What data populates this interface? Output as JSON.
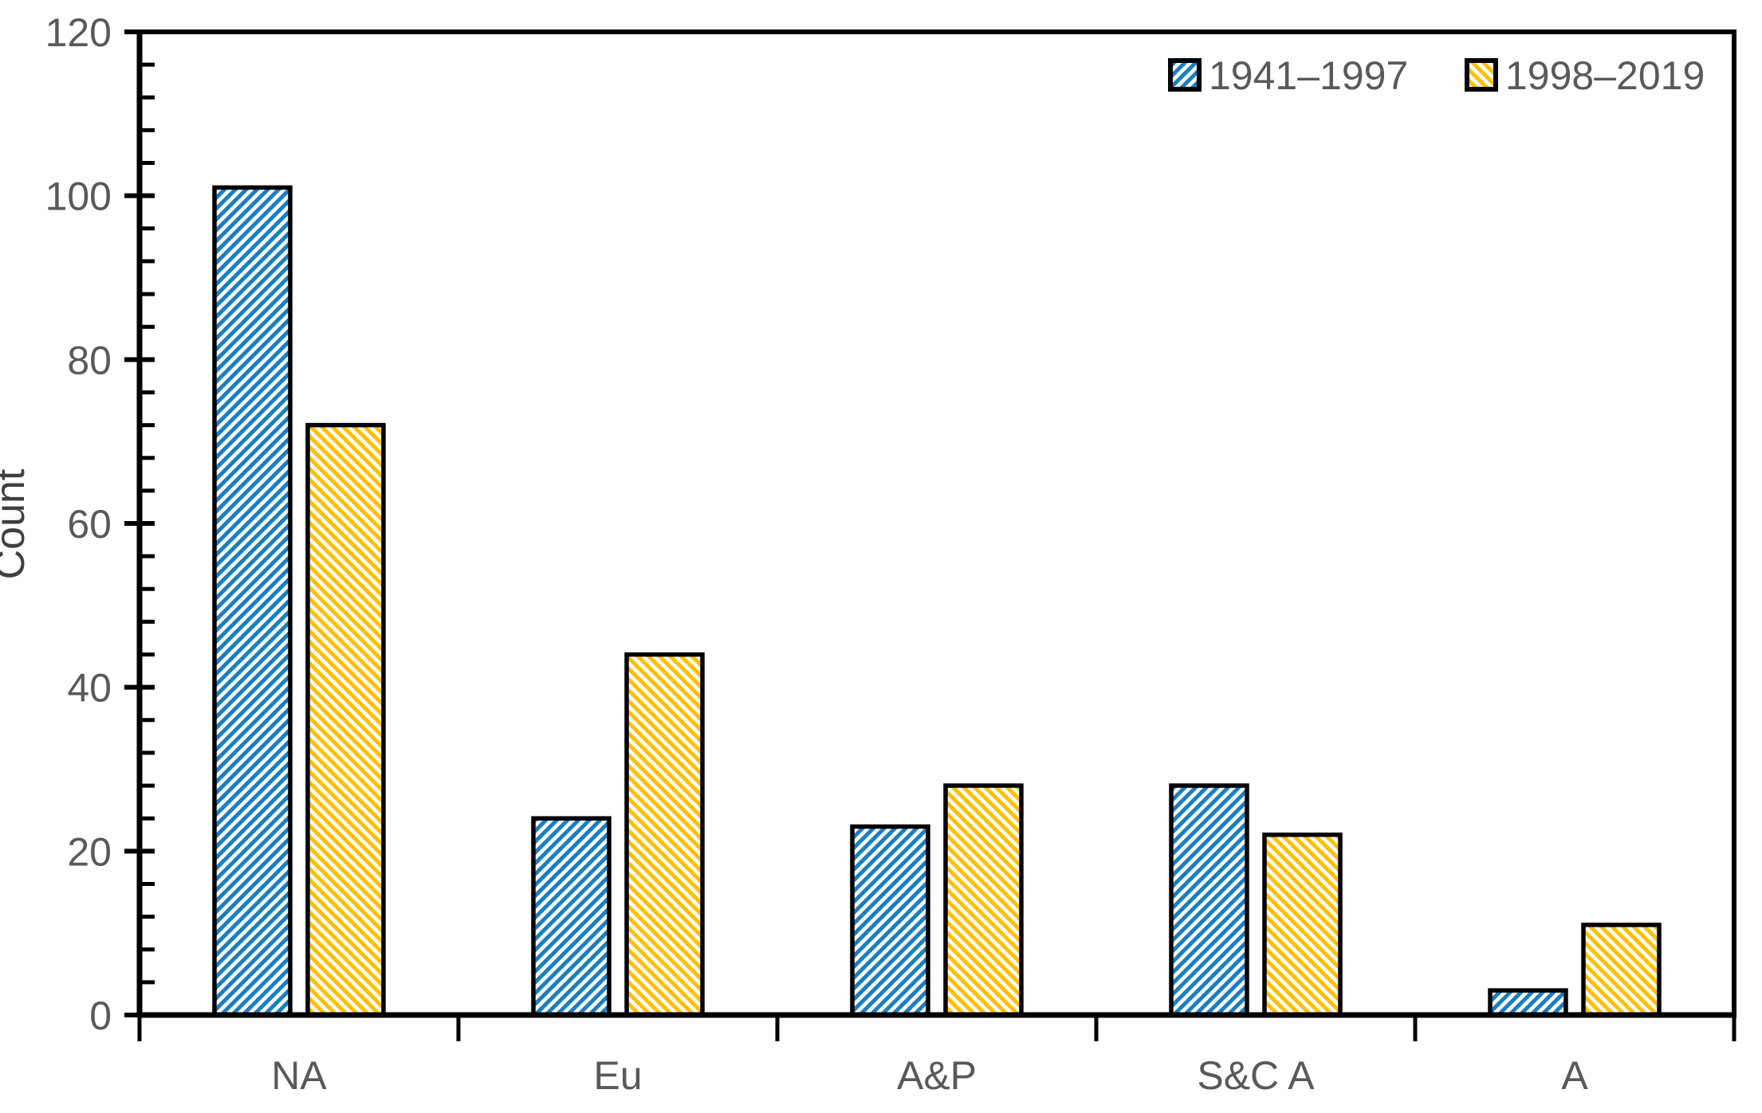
{
  "chart_data": {
    "type": "bar",
    "title": "",
    "xlabel": "",
    "ylabel": "Count",
    "categories": [
      "NA",
      "Eu",
      "A&P",
      "S&C A",
      "A"
    ],
    "series": [
      {
        "name": "1941–1997",
        "color": "#1B7EC0",
        "hatch": "forward-diagonal",
        "values": [
          101,
          24,
          23,
          28,
          3
        ]
      },
      {
        "name": "1998–2019",
        "color": "#FFC000",
        "hatch": "backward-diagonal",
        "values": [
          72,
          44,
          28,
          22,
          11
        ]
      }
    ],
    "ylim": [
      0,
      120
    ],
    "yticks": [
      0,
      20,
      40,
      60,
      80,
      100,
      120
    ],
    "minor_tick_interval": 4,
    "grid": false,
    "legend_position": "top-right-inside",
    "plot_border": "top-right-left-bottom"
  },
  "colors": {
    "axis": "#000000",
    "bar_outline": "#000000",
    "tick_label": "#595959",
    "category_label": "#595959",
    "legend_label": "#595959",
    "axis_title": "#404040",
    "background": "#ffffff"
  }
}
